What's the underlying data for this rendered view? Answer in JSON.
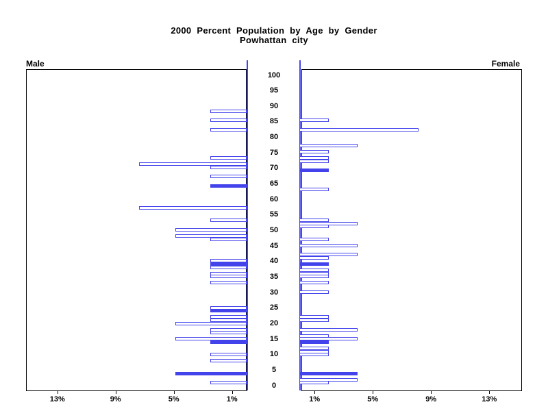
{
  "title": {
    "line1": "2000 Percent Population by Age by Gender",
    "line2": "Powhattan city"
  },
  "panels": {
    "left_label": "Male",
    "right_label": "Female"
  },
  "colors": {
    "bar_blue": "#4343ec",
    "frame_black": "#000000",
    "background": "#ffffff"
  },
  "chart_data": {
    "type": "bar",
    "variant": "population-pyramid",
    "title": "2000 Percent Population by Age by Gender",
    "subtitle": "Powhattan city",
    "age_axis": {
      "min": 0,
      "max": 100,
      "tick_interval": 5,
      "tick_labels": [
        "100",
        "95",
        "90",
        "85",
        "80",
        "75",
        "70",
        "65",
        "60",
        "55",
        "50",
        "45",
        "40",
        "35",
        "30",
        "25",
        "20",
        "15",
        "10",
        "5",
        "0"
      ]
    },
    "percent_axis": {
      "max_pct": 15,
      "male_tick_labels": [
        "13%",
        "9%",
        "5%",
        "1%"
      ],
      "female_tick_labels": [
        "1%",
        "5%",
        "9%",
        "13%"
      ],
      "tick_values_pct": [
        1,
        5,
        9,
        13
      ]
    },
    "legend_note": "solid blue bars occur at ages that are multiples of 5; other bars are blue outlines",
    "series": [
      {
        "name": "Male",
        "side": "left",
        "points": [
          {
            "age": 89,
            "pct": 2.5,
            "solid": false
          },
          {
            "age": 86,
            "pct": 2.5,
            "solid": false
          },
          {
            "age": 83,
            "pct": 2.5,
            "solid": false
          },
          {
            "age": 74,
            "pct": 2.5,
            "solid": false
          },
          {
            "age": 72,
            "pct": 7.4,
            "solid": false
          },
          {
            "age": 71,
            "pct": 2.5,
            "solid": false
          },
          {
            "age": 68,
            "pct": 2.5,
            "solid": false
          },
          {
            "age": 65,
            "pct": 2.5,
            "solid": true
          },
          {
            "age": 58,
            "pct": 7.4,
            "solid": false
          },
          {
            "age": 54,
            "pct": 2.5,
            "solid": false
          },
          {
            "age": 51,
            "pct": 4.9,
            "solid": false
          },
          {
            "age": 49,
            "pct": 4.9,
            "solid": false
          },
          {
            "age": 48,
            "pct": 2.5,
            "solid": false
          },
          {
            "age": 41,
            "pct": 2.5,
            "solid": false
          },
          {
            "age": 40,
            "pct": 2.5,
            "solid": true
          },
          {
            "age": 39,
            "pct": 2.5,
            "solid": false
          },
          {
            "age": 37,
            "pct": 2.5,
            "solid": false
          },
          {
            "age": 36,
            "pct": 2.5,
            "solid": false
          },
          {
            "age": 34,
            "pct": 2.5,
            "solid": false
          },
          {
            "age": 26,
            "pct": 2.5,
            "solid": false
          },
          {
            "age": 25,
            "pct": 2.5,
            "solid": true
          },
          {
            "age": 23,
            "pct": 2.5,
            "solid": false
          },
          {
            "age": 22,
            "pct": 2.5,
            "solid": false
          },
          {
            "age": 21,
            "pct": 4.9,
            "solid": false
          },
          {
            "age": 19,
            "pct": 2.5,
            "solid": false
          },
          {
            "age": 18,
            "pct": 2.5,
            "solid": false
          },
          {
            "age": 16,
            "pct": 4.9,
            "solid": false
          },
          {
            "age": 15,
            "pct": 2.5,
            "solid": true
          },
          {
            "age": 11,
            "pct": 2.5,
            "solid": false
          },
          {
            "age": 9,
            "pct": 2.5,
            "solid": false
          },
          {
            "age": 5,
            "pct": 4.9,
            "solid": true
          },
          {
            "age": 2,
            "pct": 2.5,
            "solid": false
          }
        ]
      },
      {
        "name": "Female",
        "side": "right",
        "points": [
          {
            "age": 86,
            "pct": 2.0,
            "solid": false
          },
          {
            "age": 83,
            "pct": 8.2,
            "solid": false
          },
          {
            "age": 78,
            "pct": 4.0,
            "solid": false
          },
          {
            "age": 76,
            "pct": 2.0,
            "solid": false
          },
          {
            "age": 74,
            "pct": 2.0,
            "solid": false
          },
          {
            "age": 73,
            "pct": 2.0,
            "solid": false
          },
          {
            "age": 70,
            "pct": 2.0,
            "solid": true
          },
          {
            "age": 64,
            "pct": 2.0,
            "solid": false
          },
          {
            "age": 54,
            "pct": 2.0,
            "solid": false
          },
          {
            "age": 53,
            "pct": 4.0,
            "solid": false
          },
          {
            "age": 52,
            "pct": 2.0,
            "solid": false
          },
          {
            "age": 48,
            "pct": 2.0,
            "solid": false
          },
          {
            "age": 46,
            "pct": 4.0,
            "solid": false
          },
          {
            "age": 43,
            "pct": 4.0,
            "solid": false
          },
          {
            "age": 42,
            "pct": 2.0,
            "solid": false
          },
          {
            "age": 40,
            "pct": 2.0,
            "solid": true
          },
          {
            "age": 38,
            "pct": 2.0,
            "solid": false
          },
          {
            "age": 37,
            "pct": 2.0,
            "solid": false
          },
          {
            "age": 36,
            "pct": 2.0,
            "solid": false
          },
          {
            "age": 34,
            "pct": 2.0,
            "solid": false
          },
          {
            "age": 31,
            "pct": 2.0,
            "solid": false
          },
          {
            "age": 23,
            "pct": 2.0,
            "solid": false
          },
          {
            "age": 22,
            "pct": 2.0,
            "solid": false
          },
          {
            "age": 19,
            "pct": 4.0,
            "solid": false
          },
          {
            "age": 17,
            "pct": 2.0,
            "solid": false
          },
          {
            "age": 16,
            "pct": 4.0,
            "solid": false
          },
          {
            "age": 15,
            "pct": 2.0,
            "solid": true
          },
          {
            "age": 13,
            "pct": 2.0,
            "solid": false
          },
          {
            "age": 12,
            "pct": 2.0,
            "solid": false
          },
          {
            "age": 11,
            "pct": 2.0,
            "solid": false
          },
          {
            "age": 5,
            "pct": 4.0,
            "solid": true
          },
          {
            "age": 3,
            "pct": 4.0,
            "solid": false
          },
          {
            "age": 2,
            "pct": 2.0,
            "solid": false
          }
        ]
      }
    ]
  }
}
